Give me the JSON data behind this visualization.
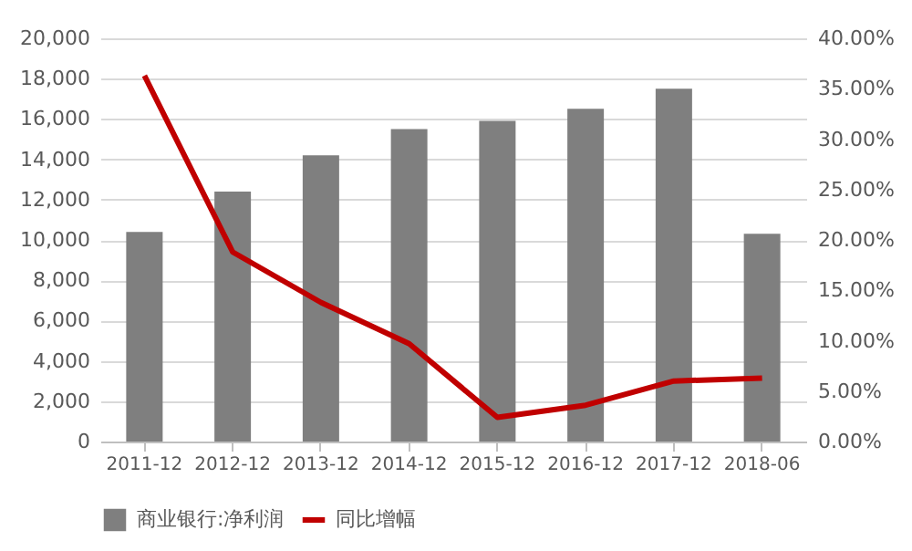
{
  "chart_data": {
    "type": "bar",
    "categories": [
      "2011-12",
      "2012-12",
      "2013-12",
      "2014-12",
      "2015-12",
      "2016-12",
      "2017-12",
      "2018-06"
    ],
    "series": [
      {
        "name": "商业银行:净利润",
        "color": "#7f7f7f",
        "values": [
          10400,
          12400,
          14200,
          15500,
          15900,
          16500,
          17500,
          10300
        ]
      },
      {
        "name": "同比增幅",
        "type": "line",
        "axis": "y2",
        "color": "#c00000",
        "values": [
          36.3,
          18.8,
          13.8,
          9.7,
          2.4,
          3.6,
          6.0,
          6.3
        ]
      }
    ],
    "ylim": [
      0,
      20000
    ],
    "yticks": [
      {
        "value": 0,
        "label": "0"
      },
      {
        "value": 2000,
        "label": "2,000"
      },
      {
        "value": 4000,
        "label": "4,000"
      },
      {
        "value": 6000,
        "label": "6,000"
      },
      {
        "value": 8000,
        "label": "8,000"
      },
      {
        "value": 10000,
        "label": "10,000"
      },
      {
        "value": 12000,
        "label": "12,000"
      },
      {
        "value": 14000,
        "label": "14,000"
      },
      {
        "value": 16000,
        "label": "16,000"
      },
      {
        "value": 18000,
        "label": "18,000"
      },
      {
        "value": 20000,
        "label": "20,000"
      }
    ],
    "y2lim": [
      0,
      40
    ],
    "y2ticks": [
      {
        "value": 0,
        "label": "0.00%"
      },
      {
        "value": 5,
        "label": "5.00%"
      },
      {
        "value": 10,
        "label": "10.00%"
      },
      {
        "value": 15,
        "label": "15.00%"
      },
      {
        "value": 20,
        "label": "20.00%"
      },
      {
        "value": 25,
        "label": "25.00%"
      },
      {
        "value": 30,
        "label": "30.00%"
      },
      {
        "value": 35,
        "label": "35.00%"
      },
      {
        "value": 40,
        "label": "40.00%"
      }
    ],
    "grid": "y",
    "legend": "bottom",
    "marker": "none",
    "line_style": "solid"
  }
}
